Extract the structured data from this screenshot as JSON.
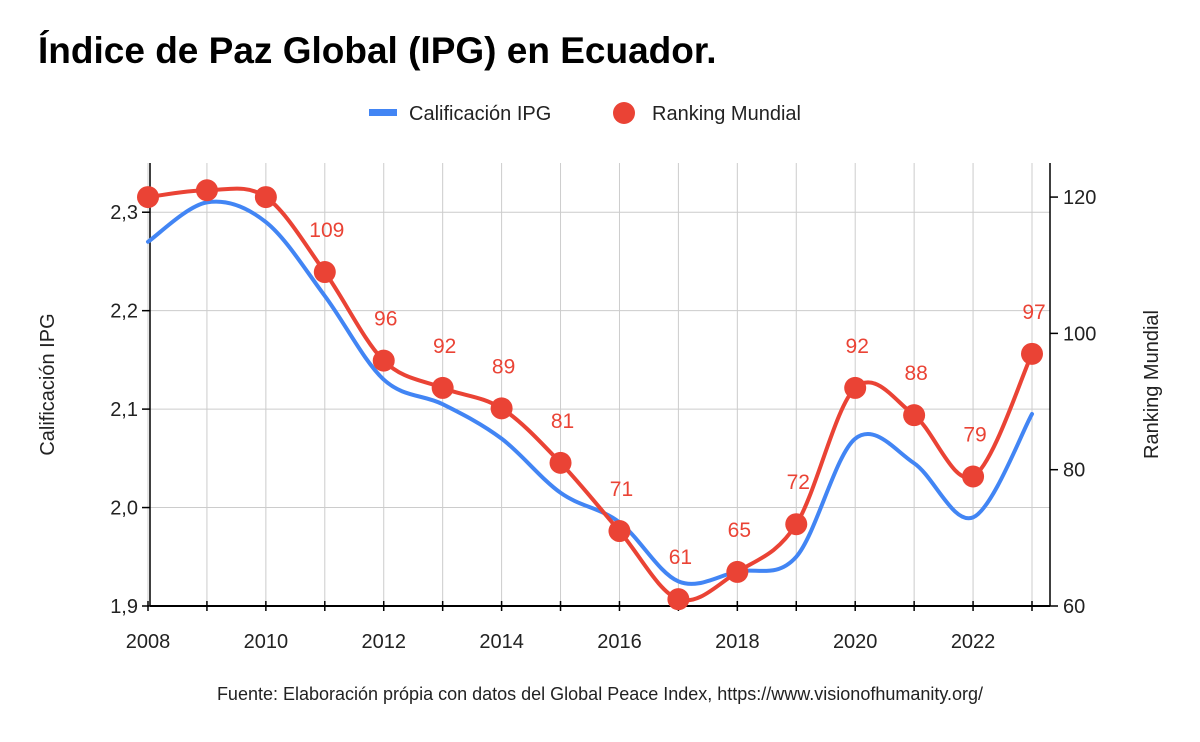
{
  "chart_data": {
    "type": "line",
    "title": "Índice de Paz Global (IPG) en Ecuador.",
    "source": "Fuente: Elaboración própia con datos del Global Peace Index, https://www.visionofhumanity.org/",
    "x_ticks": [
      "2008",
      "2010",
      "2012",
      "2014",
      "2016",
      "2018",
      "2020",
      "2022"
    ],
    "xlim": [
      2008,
      2023.3
    ],
    "y_left": {
      "label": "Calificación IPG",
      "ylim": [
        1.9,
        2.35
      ],
      "ticks": [
        1.9,
        2.0,
        2.1,
        2.2,
        2.3
      ],
      "tick_labels": [
        "1,9",
        "2,0",
        "2,1",
        "2,2",
        "2,3"
      ]
    },
    "y_right": {
      "label": "Ranking Mundial",
      "ylim": [
        60,
        125
      ],
      "ticks": [
        60,
        80,
        100,
        120
      ],
      "tick_labels": [
        "60",
        "80",
        "100",
        "120"
      ]
    },
    "legend_position": "top",
    "grid": true,
    "series": [
      {
        "name": "Calificación IPG",
        "axis": "left",
        "color": "#4285f4",
        "style": "line",
        "x": [
          2008,
          2009,
          2010,
          2011,
          2012,
          2013,
          2014,
          2015,
          2016,
          2017,
          2018,
          2019,
          2020,
          2021,
          2022,
          2023
        ],
        "values": [
          2.27,
          2.31,
          2.29,
          2.215,
          2.13,
          2.105,
          2.07,
          2.015,
          1.985,
          1.925,
          1.935,
          1.95,
          2.07,
          2.045,
          1.99,
          2.095
        ]
      },
      {
        "name": "Ranking Mundial",
        "axis": "right",
        "color": "#ea4335",
        "style": "line-markers",
        "x": [
          2008,
          2009,
          2010,
          2011,
          2012,
          2013,
          2014,
          2015,
          2016,
          2017,
          2018,
          2019,
          2020,
          2021,
          2022,
          2023
        ],
        "values": [
          120,
          121,
          120,
          109,
          96,
          92,
          89,
          81,
          71,
          61,
          65,
          72,
          92,
          88,
          79,
          97
        ],
        "data_labels": [
          "",
          "",
          "",
          "109",
          "96",
          "92",
          "89",
          "81",
          "71",
          "61",
          "65",
          "72",
          "92",
          "88",
          "79",
          "97"
        ]
      }
    ]
  }
}
